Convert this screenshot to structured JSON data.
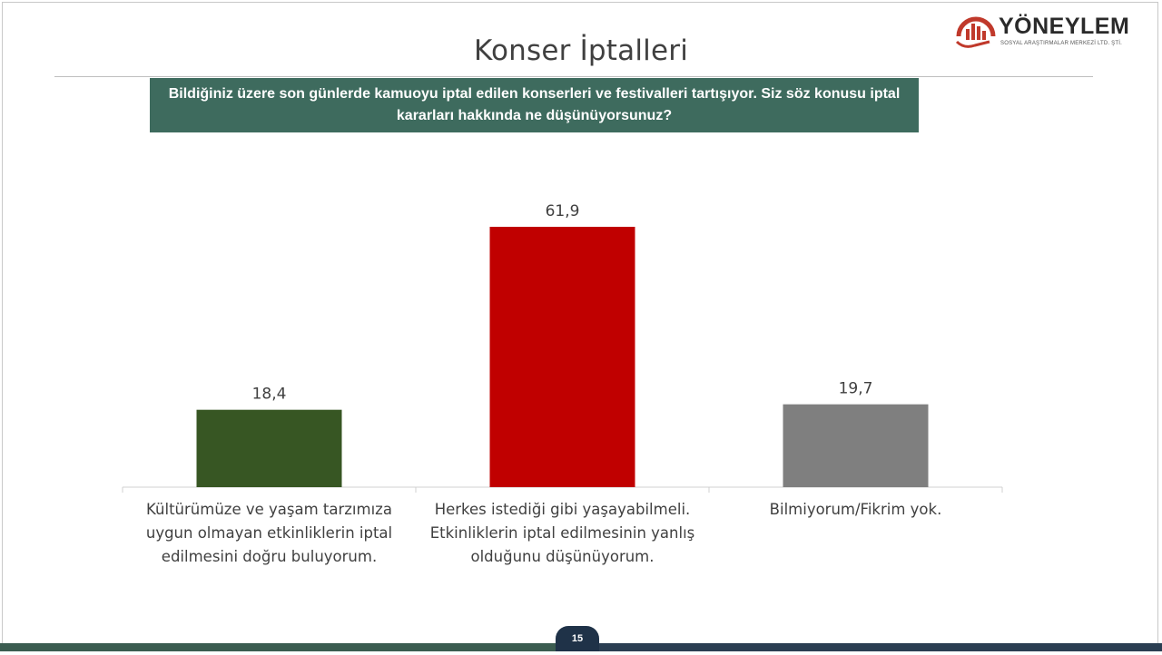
{
  "slide": {
    "title": "Konser İptalleri",
    "question": "Bildiğiniz üzere son günlerde kamuoyu iptal edilen konserleri ve festivalleri tartışıyor. Siz söz konusu iptal kararları hakkında ne düşünüyorsunuz?",
    "page_number": "15"
  },
  "logo": {
    "name": "YÖNEYLEM",
    "subtitle": "SOSYAL ARAŞTIRMALAR MERKEZİ LTD. ŞTİ.",
    "color": "#c0392b"
  },
  "chart_data": {
    "type": "bar",
    "categories": [
      "Kültürümüze ve yaşam tarzımıza uygun olmayan etkinliklerin iptal edilmesini doğru buluyorum.",
      "Herkes istediği gibi yaşayabilmeli. Etkinliklerin iptal edilmesinin yanlış olduğunu düşünüyorum.",
      "Bilmiyorum/Fikrim yok."
    ],
    "values": [
      18.4,
      61.9,
      19.7
    ],
    "value_labels": [
      "18,4",
      "61,9",
      "19,7"
    ],
    "colors": [
      "#375623",
      "#c00000",
      "#7f7f7f"
    ],
    "ylim": [
      0,
      70
    ],
    "grid": false,
    "legend": false
  }
}
